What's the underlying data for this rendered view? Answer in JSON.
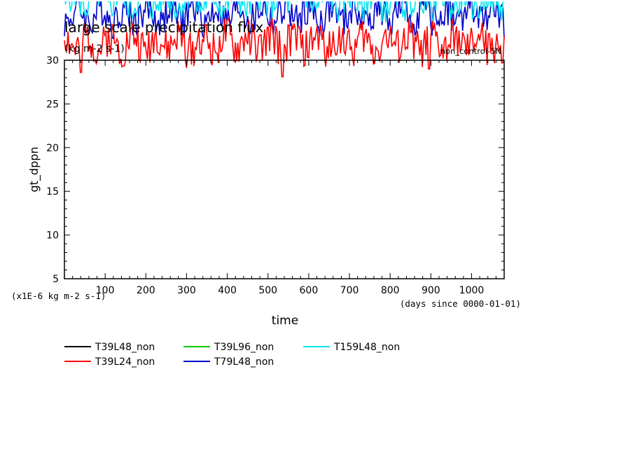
{
  "chart_data": {
    "type": "line",
    "title": "large scale precipitation flux",
    "units": "(kg m-2 s-1)",
    "run_label": "non_control-5N",
    "xlabel": "time",
    "xlabel_units": "(days since 0000-01-01)",
    "ylabel": "gt_dppn",
    "ylabel_units": "(x1E-6 kg m-2 s-1)",
    "xlim": [
      0,
      1080
    ],
    "ylim": [
      5,
      30
    ],
    "xticks": [
      100,
      200,
      300,
      400,
      500,
      600,
      700,
      800,
      900,
      1000
    ],
    "yticks": [
      5,
      10,
      15,
      20,
      25,
      30
    ],
    "x_step_days": 3,
    "grid": false,
    "legend_position": "bottom-left",
    "series": [
      {
        "name": "T39L48_non",
        "color": "#000000",
        "visible": false,
        "base": 33.5,
        "amp": 2.0,
        "phase": 0.3
      },
      {
        "name": "T39L24_non",
        "color": "#ff0000",
        "visible": true,
        "base": 32.0,
        "amp": 2.2,
        "phase": 1.7,
        "dips": [
          [
            40,
            28.6
          ],
          [
            300,
            29.1
          ],
          [
            535,
            28.1
          ],
          [
            895,
            29.0
          ],
          [
            1075,
            29.7
          ]
        ]
      },
      {
        "name": "T39L96_non",
        "color": "#00cc00",
        "visible": false,
        "base": 34.0,
        "amp": 2.0,
        "phase": 2.9
      },
      {
        "name": "T79L48_non",
        "color": "#0000cc",
        "visible": true,
        "base": 35.2,
        "amp": 2.0,
        "phase": 4.1
      },
      {
        "name": "T159L48_non",
        "color": "#00e5ee",
        "visible": true,
        "base": 36.8,
        "amp": 1.8,
        "phase": 5.3
      }
    ]
  }
}
